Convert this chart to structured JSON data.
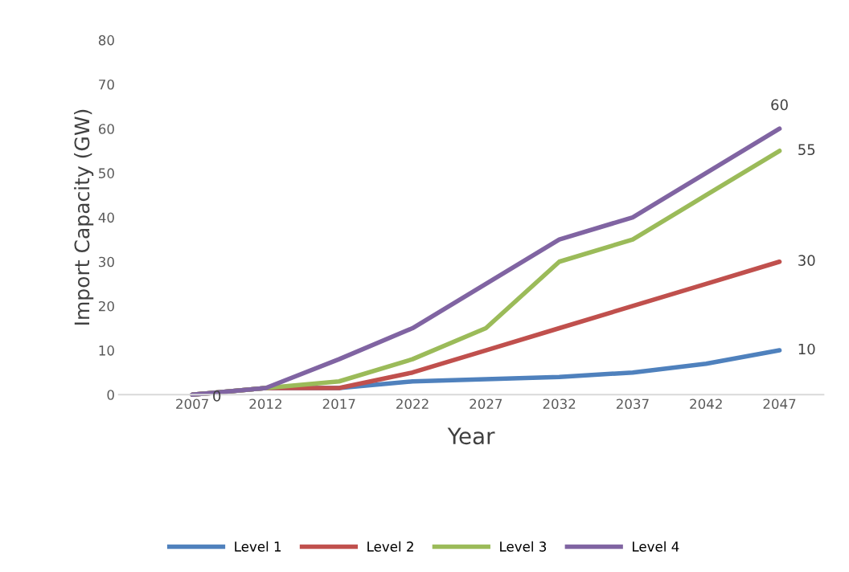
{
  "chart_data": {
    "type": "line",
    "xlabel": "Year",
    "ylabel": "Import Capacity (GW)",
    "categories": [
      "2007",
      "2012",
      "2017",
      "2022",
      "2027",
      "2032",
      "2037",
      "2042",
      "2047"
    ],
    "series": [
      {
        "name": "Level 1",
        "color": "#4f81bd",
        "values": [
          0,
          1.5,
          1.5,
          3,
          3.5,
          4,
          5,
          7,
          10
        ],
        "value_labels": [
          null,
          null,
          null,
          null,
          null,
          null,
          null,
          null,
          "10"
        ]
      },
      {
        "name": "Level 2",
        "color": "#c0504d",
        "values": [
          0,
          1.5,
          1.5,
          5,
          10,
          15,
          20,
          25,
          30
        ],
        "value_labels": [
          null,
          null,
          null,
          null,
          null,
          null,
          null,
          null,
          "30"
        ]
      },
      {
        "name": "Level 3",
        "color": "#9bbb59",
        "values": [
          0,
          1.5,
          3,
          8,
          15,
          30,
          35,
          45,
          55
        ],
        "value_labels": [
          null,
          null,
          null,
          null,
          null,
          null,
          null,
          null,
          "55"
        ]
      },
      {
        "name": "Level 4",
        "color": "#8064a2",
        "values": [
          0,
          1.5,
          8,
          15,
          25,
          35,
          40,
          50,
          60
        ],
        "value_labels": [
          "0",
          null,
          null,
          null,
          null,
          null,
          null,
          null,
          "60"
        ]
      }
    ],
    "ylim": [
      0,
      80
    ],
    "yticks": [
      0,
      10,
      20,
      30,
      40,
      50,
      60,
      70,
      80
    ],
    "grid": false,
    "legend": "bottom",
    "marker": "none",
    "line_style": "solid"
  }
}
